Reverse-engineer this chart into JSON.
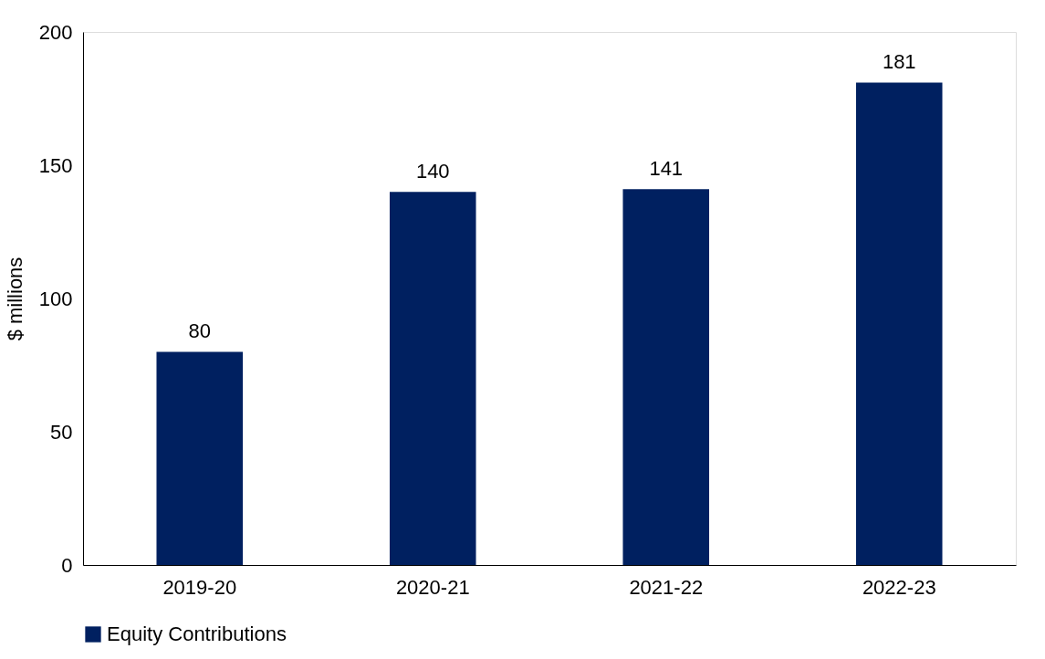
{
  "chart_data": {
    "type": "bar",
    "ylabel": "$ millions",
    "categories": [
      "2019-20",
      "2020-21",
      "2021-22",
      "2022-23"
    ],
    "series": [
      {
        "name": "Equity Contributions",
        "color": "#002060",
        "values": [
          80,
          140,
          141,
          181
        ]
      }
    ],
    "ylim": [
      0,
      200
    ],
    "yticks": [
      0,
      50,
      100,
      150,
      200
    ],
    "grid": false,
    "legend": "bottom",
    "data_labels": true
  }
}
